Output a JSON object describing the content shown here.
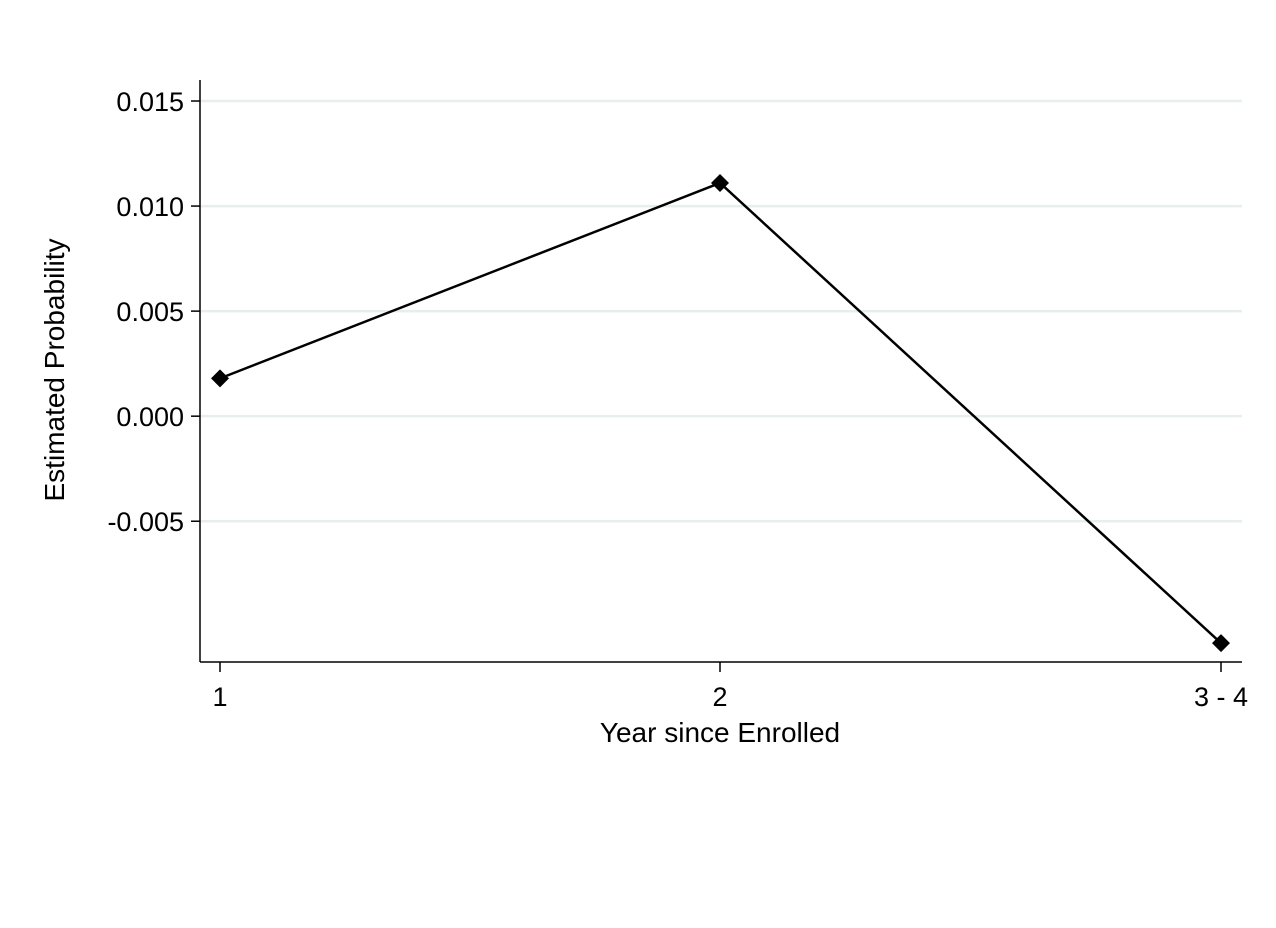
{
  "chart_data": {
    "type": "line",
    "title": "",
    "xlabel": "Year since Enrolled",
    "ylabel": "Estimated Probability",
    "categories": [
      "1",
      "2",
      "3 - 4"
    ],
    "series": [
      {
        "values": [
          0.0018,
          0.0111,
          -0.0108
        ]
      }
    ],
    "yticks": [
      {
        "value": 0.015,
        "label": "0.015"
      },
      {
        "value": 0.01,
        "label": "0.010"
      },
      {
        "value": 0.005,
        "label": "0.005"
      },
      {
        "value": 0.0,
        "label": "0.000"
      },
      {
        "value": -0.005,
        "label": "-0.005"
      }
    ],
    "ylim": [
      -0.0117,
      0.016
    ],
    "grid": true,
    "grid_color": "#e8eeee",
    "line_color": "#000000",
    "marker": "diamond",
    "legend": "none"
  }
}
